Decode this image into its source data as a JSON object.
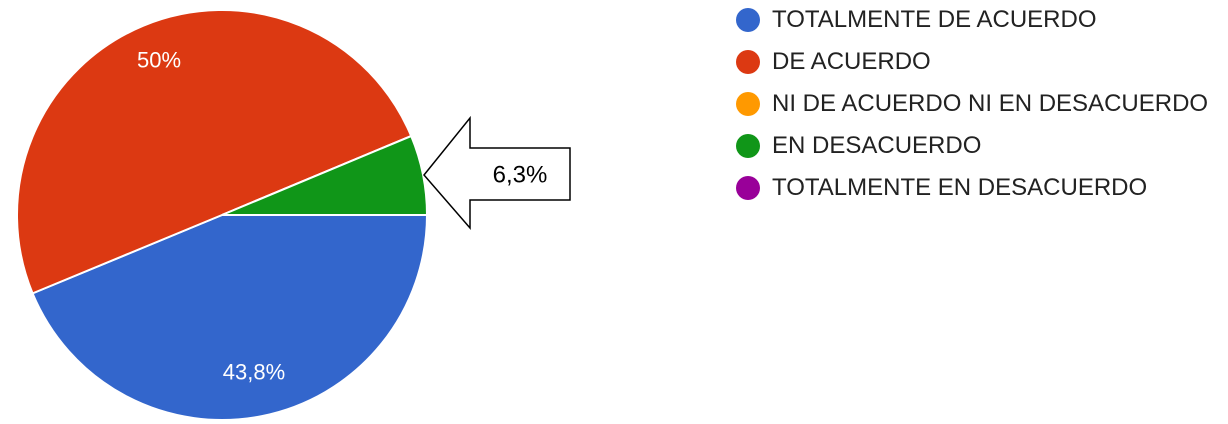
{
  "chart_data": {
    "type": "pie",
    "categories": [
      "TOTALMENTE DE ACUERDO",
      "DE ACUERDO",
      "NI DE ACUERDO NI EN DESACUERDO",
      "EN DESACUERDO",
      "TOTALMENTE EN DESACUERDO"
    ],
    "values": [
      43.8,
      50,
      0,
      6.3,
      0
    ],
    "value_labels": [
      "43,8%",
      "50%",
      null,
      "6,3%",
      null
    ],
    "colors": [
      "#3366cc",
      "#dc3912",
      "#ff9900",
      "#109618",
      "#990099"
    ],
    "legend": "right"
  }
}
